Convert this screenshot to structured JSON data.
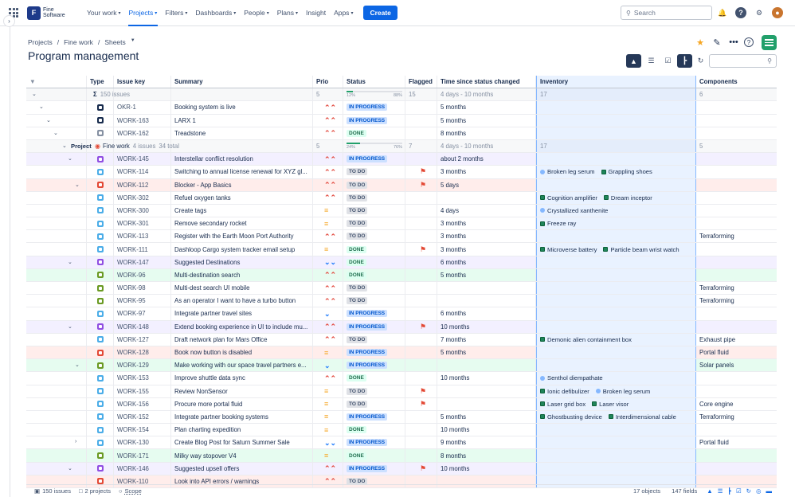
{
  "topnav": {
    "logo_line1": "Fine",
    "logo_line2": "Software",
    "items": [
      {
        "label": "Your work",
        "chev": true
      },
      {
        "label": "Projects",
        "chev": true,
        "active": true
      },
      {
        "label": "Filters",
        "chev": true
      },
      {
        "label": "Dashboards",
        "chev": true
      },
      {
        "label": "People",
        "chev": true
      },
      {
        "label": "Plans",
        "chev": true
      },
      {
        "label": "Insight",
        "chev": false
      },
      {
        "label": "Apps",
        "chev": true
      }
    ],
    "create_label": "Create",
    "search_placeholder": "Search"
  },
  "breadcrumb": {
    "items": [
      "Projects",
      "Fine work",
      "Sheets"
    ]
  },
  "page_title": "Program management",
  "columns": [
    "Type",
    "Issue key",
    "Summary",
    "Prio",
    "Status",
    "Flagged",
    "Time since status changed",
    "Inventory",
    "Components"
  ],
  "summary_row": {
    "count": "150 issues",
    "prio": "5",
    "status_low": "12%",
    "status_high": "88%",
    "flagged": "15",
    "time": "4 days - 10 months",
    "inventory": "17",
    "components": "6"
  },
  "group_row": {
    "label": "Project",
    "project": "Fine work",
    "issues": "4 issues",
    "total": "34 total",
    "prio": "5",
    "status_low": "24%",
    "status_high": "76%",
    "flagged": "7",
    "time": "4 days - 10 months",
    "inventory": "17",
    "components": "5"
  },
  "rows": [
    {
      "lvl": 1,
      "exp": "v",
      "type": "obj",
      "key": "OKR-1",
      "summary": "Booking system is live",
      "prio": "hi",
      "status": "prog",
      "status_label": "In progress",
      "flag": false,
      "time": "5 months",
      "inv": [],
      "comp": "",
      "row": ""
    },
    {
      "lvl": 2,
      "exp": "v",
      "type": "obj",
      "key": "WORK-163",
      "summary": "LARX 1",
      "prio": "hi",
      "status": "prog",
      "status_label": "In progress",
      "flag": false,
      "time": "5 months",
      "inv": [],
      "comp": "",
      "row": ""
    },
    {
      "lvl": 3,
      "exp": "v",
      "type": "gray",
      "key": "WORK-162",
      "summary": "Treadstone",
      "prio": "hi",
      "status": "done",
      "status_label": "Done",
      "flag": false,
      "time": "8 months",
      "inv": [],
      "comp": "",
      "row": ""
    },
    {
      "group": true
    },
    {
      "lvl": 5,
      "exp": "v",
      "type": "epic",
      "key": "WORK-145",
      "summary": "Interstellar conflict resolution",
      "prio": "hi",
      "status": "prog",
      "status_label": "In progress",
      "flag": false,
      "time": "about 2 months",
      "inv": [],
      "comp": "",
      "row": "epic"
    },
    {
      "lvl": 6,
      "exp": "",
      "type": "task",
      "key": "WORK-114",
      "summary": "Switching to annual license renewal for XYZ gl...",
      "prio": "hi",
      "status": "todo",
      "status_label": "To do",
      "flag": true,
      "time": "3 months",
      "inv": [
        {
          "c": "b",
          "t": "Broken leg serum"
        },
        {
          "c": "g",
          "t": "Grappling shoes"
        }
      ],
      "comp": "",
      "row": ""
    },
    {
      "lvl": 6,
      "exp": "v",
      "type": "bug",
      "key": "WORK-112",
      "summary": "Blocker - App Basics",
      "prio": "hi",
      "status": "todo",
      "status_label": "To do",
      "flag": true,
      "time": "5 days",
      "inv": [],
      "comp": "",
      "row": "bug"
    },
    {
      "lvl": 7,
      "exp": "",
      "type": "task",
      "key": "WORK-302",
      "summary": "Refuel oxygen tanks",
      "prio": "hi",
      "status": "todo",
      "status_label": "To do",
      "flag": false,
      "time": "",
      "inv": [
        {
          "c": "g",
          "t": "Cognition amplifier"
        },
        {
          "c": "g",
          "t": "Dream inceptor"
        }
      ],
      "comp": "",
      "row": ""
    },
    {
      "lvl": 7,
      "exp": "",
      "type": "task",
      "key": "WORK-300",
      "summary": "Create tags",
      "prio": "md",
      "status": "todo",
      "status_label": "To do",
      "flag": false,
      "time": "4 days",
      "inv": [
        {
          "c": "b",
          "t": "Crystallized xanthenite"
        }
      ],
      "comp": "",
      "row": ""
    },
    {
      "lvl": 7,
      "exp": "",
      "type": "task",
      "key": "WORK-301",
      "summary": "Remove secondary rocket",
      "prio": "md",
      "status": "todo",
      "status_label": "To do",
      "flag": false,
      "time": "3 months",
      "inv": [
        {
          "c": "g",
          "t": "Freeze ray"
        }
      ],
      "comp": "",
      "row": ""
    },
    {
      "lvl": 6,
      "exp": "",
      "type": "task",
      "key": "WORK-113",
      "summary": "Register with the Earth Moon Port Authority",
      "prio": "hi",
      "status": "todo",
      "status_label": "To do",
      "flag": false,
      "time": "3 months",
      "inv": [],
      "comp": "Terraforming",
      "row": ""
    },
    {
      "lvl": 6,
      "exp": "",
      "type": "task",
      "key": "WORK-111",
      "summary": "Dashloop Cargo system tracker email setup",
      "prio": "md",
      "status": "done",
      "status_label": "Done",
      "flag": true,
      "time": "3 months",
      "inv": [
        {
          "c": "g",
          "t": "Microverse battery"
        },
        {
          "c": "g",
          "t": "Particle beam wrist watch"
        }
      ],
      "comp": "",
      "row": ""
    },
    {
      "lvl": 5,
      "exp": "v",
      "type": "epic",
      "key": "WORK-147",
      "summary": "Suggested Destinations",
      "prio": "lo2",
      "status": "done",
      "status_label": "Done",
      "flag": false,
      "time": "6 months",
      "inv": [],
      "comp": "",
      "row": "epic"
    },
    {
      "lvl": 6,
      "exp": "",
      "type": "story",
      "key": "WORK-96",
      "summary": "Multi-destination search",
      "prio": "hi",
      "status": "done",
      "status_label": "Done",
      "flag": false,
      "time": "5 months",
      "inv": [],
      "comp": "",
      "row": "story"
    },
    {
      "lvl": 6,
      "exp": "",
      "type": "story",
      "key": "WORK-98",
      "summary": "Multi-dest search UI mobile",
      "prio": "hi",
      "status": "todo",
      "status_label": "To do",
      "flag": false,
      "time": "",
      "inv": [],
      "comp": "Terraforming",
      "row": ""
    },
    {
      "lvl": 6,
      "exp": "",
      "type": "story",
      "key": "WORK-95",
      "summary": "As an operator I want to have a turbo button",
      "prio": "hi",
      "status": "todo",
      "status_label": "To do",
      "flag": false,
      "time": "",
      "inv": [],
      "comp": "Terraforming",
      "row": ""
    },
    {
      "lvl": 6,
      "exp": "",
      "type": "task",
      "key": "WORK-97",
      "summary": "Integrate partner travel sites",
      "prio": "lo",
      "status": "prog",
      "status_label": "In progress",
      "flag": false,
      "time": "6 months",
      "inv": [],
      "comp": "",
      "row": ""
    },
    {
      "lvl": 5,
      "exp": "v",
      "type": "epic",
      "key": "WORK-148",
      "summary": "Extend booking experience in UI to include mu...",
      "prio": "hi",
      "status": "prog",
      "status_label": "In progress",
      "flag": true,
      "time": "10 months",
      "inv": [],
      "comp": "",
      "row": "epic"
    },
    {
      "lvl": 6,
      "exp": "",
      "type": "task",
      "key": "WORK-127",
      "summary": "Draft network plan for Mars Office",
      "prio": "hi",
      "status": "todo",
      "status_label": "To do",
      "flag": false,
      "time": "7 months",
      "inv": [
        {
          "c": "g",
          "t": "Demonic alien containment box"
        }
      ],
      "comp": "Exhaust pipe",
      "row": ""
    },
    {
      "lvl": 6,
      "exp": "",
      "type": "bug",
      "key": "WORK-128",
      "summary": "Book now button is disabled",
      "prio": "md",
      "status": "prog",
      "status_label": "In progress",
      "flag": false,
      "time": "5 months",
      "inv": [],
      "comp": "Portal fluid",
      "row": "bug"
    },
    {
      "lvl": 6,
      "exp": "v",
      "type": "story",
      "key": "WORK-129",
      "summary": "Make working with our space travel partners e...",
      "prio": "lo",
      "status": "prog",
      "status_label": "In progress",
      "flag": false,
      "time": "",
      "inv": [],
      "comp": "Solar panels",
      "row": "story"
    },
    {
      "lvl": 7,
      "exp": "",
      "type": "task",
      "key": "WORK-153",
      "summary": "Improve shuttle data sync",
      "prio": "hi",
      "status": "done",
      "status_label": "Done",
      "flag": false,
      "time": "10 months",
      "inv": [
        {
          "c": "b",
          "t": "Senthol diempathate"
        }
      ],
      "comp": "",
      "row": ""
    },
    {
      "lvl": 7,
      "exp": "",
      "type": "task",
      "key": "WORK-155",
      "summary": "Review NonSensor",
      "prio": "md",
      "status": "todo",
      "status_label": "To do",
      "flag": true,
      "time": "",
      "inv": [
        {
          "c": "g",
          "t": "Ionic defibulizer"
        },
        {
          "c": "b",
          "t": "Broken leg serum"
        }
      ],
      "comp": "",
      "row": ""
    },
    {
      "lvl": 7,
      "exp": "",
      "type": "task",
      "key": "WORK-156",
      "summary": "Procure more portal fluid",
      "prio": "md",
      "status": "todo",
      "status_label": "To do",
      "flag": true,
      "time": "",
      "inv": [
        {
          "c": "g",
          "t": "Laser grid box"
        },
        {
          "c": "g",
          "t": "Laser visor"
        }
      ],
      "comp": "Core engine",
      "row": ""
    },
    {
      "lvl": 7,
      "exp": "",
      "type": "task",
      "key": "WORK-152",
      "summary": "Integrate partner booking systems",
      "prio": "md",
      "status": "prog",
      "status_label": "In progress",
      "flag": false,
      "time": "5 months",
      "inv": [
        {
          "c": "g",
          "t": "Ghostbusting device"
        },
        {
          "c": "g",
          "t": "Interdimensional cable"
        }
      ],
      "comp": "Terraforming",
      "row": ""
    },
    {
      "lvl": 7,
      "exp": "",
      "type": "task",
      "key": "WORK-154",
      "summary": "Plan charting expedition",
      "prio": "md",
      "status": "done",
      "status_label": "Done",
      "flag": false,
      "time": "10 months",
      "inv": [],
      "comp": "",
      "row": ""
    },
    {
      "lvl": 6,
      "exp": ">",
      "type": "task",
      "key": "WORK-130",
      "summary": "Create Blog Post for Saturn Summer Sale",
      "prio": "lo2",
      "status": "prog",
      "status_label": "In progress",
      "flag": false,
      "time": "9 months",
      "inv": [],
      "comp": "Portal fluid",
      "row": ""
    },
    {
      "lvl": 6,
      "exp": "",
      "type": "story",
      "key": "WORK-171",
      "summary": "Milky way stopover V4",
      "prio": "md",
      "status": "done",
      "status_label": "Done",
      "flag": false,
      "time": "8 months",
      "inv": [],
      "comp": "",
      "row": "story"
    },
    {
      "lvl": 5,
      "exp": "v",
      "type": "epic",
      "key": "WORK-146",
      "summary": "Suggested upsell offers",
      "prio": "hi",
      "status": "prog",
      "status_label": "In progress",
      "flag": true,
      "time": "10 months",
      "inv": [],
      "comp": "",
      "row": "epic"
    },
    {
      "lvl": 6,
      "exp": "",
      "type": "bug",
      "key": "WORK-110",
      "summary": "Look into API errors / warnings",
      "prio": "hi",
      "status": "todo",
      "status_label": "To do",
      "flag": false,
      "time": "",
      "inv": [],
      "comp": "",
      "row": "bug"
    }
  ],
  "footer": {
    "issues": "150 issues",
    "projects": "2 projects",
    "scope": "Scope",
    "objects": "17 objects",
    "fields": "147 fields"
  }
}
